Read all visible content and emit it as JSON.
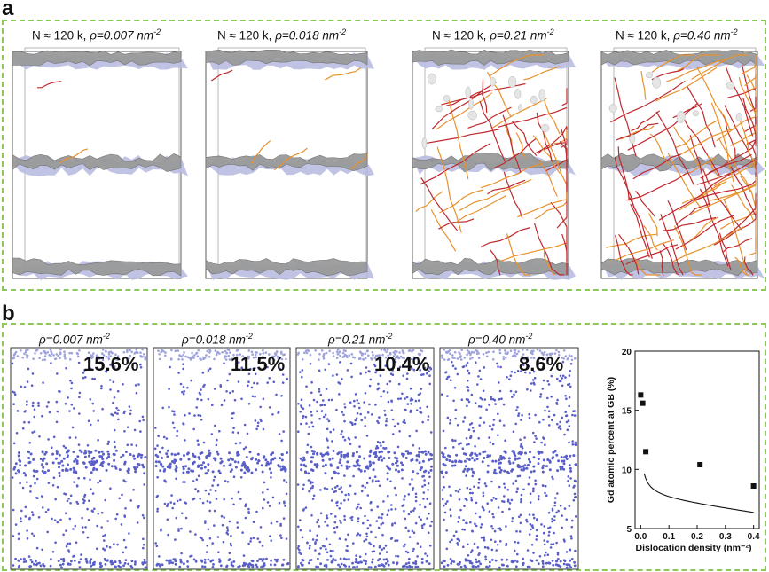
{
  "panel_a": {
    "label": "a",
    "snapshots": [
      {
        "n_label": "N ≈ 120 k, ",
        "rho_label": "ρ=0.007 nm",
        "exp": "-2",
        "density": 0.007
      },
      {
        "n_label": "N ≈ 120 k, ",
        "rho_label": "ρ=0.018 nm",
        "exp": "-2",
        "density": 0.018
      },
      {
        "n_label": "N ≈ 120 k, ",
        "rho_label": "ρ=0.21 nm",
        "exp": "-2",
        "density": 0.21
      },
      {
        "n_label": "N ≈ 120 k, ",
        "rho_label": "ρ=0.40 nm",
        "exp": "-2",
        "density": 0.4
      }
    ]
  },
  "panel_b": {
    "label": "b",
    "snapshots": [
      {
        "rho_label": "ρ=0.007 nm",
        "exp": "-2",
        "gd_percent": "15.6%"
      },
      {
        "rho_label": "ρ=0.018 nm",
        "exp": "-2",
        "gd_percent": "11.5%"
      },
      {
        "rho_label": "ρ=0.21 nm",
        "exp": "-2",
        "gd_percent": "10.4%"
      },
      {
        "rho_label": "ρ=0.40 nm",
        "exp": "-2",
        "gd_percent": "8.6%"
      }
    ]
  },
  "chart_data": {
    "type": "scatter",
    "title": "",
    "xlabel": "Dislocation density (nm⁻²)",
    "ylabel": "Gd atomic percent at GB (%)",
    "xlim": [
      -0.02,
      0.42
    ],
    "ylim": [
      5,
      20
    ],
    "xticks": [
      "0.0",
      "0.1",
      "0.2",
      "0.3",
      "0.4"
    ],
    "yticks": [
      "5",
      "10",
      "15",
      "20"
    ],
    "grid": false,
    "series": [
      {
        "x": [
          0.0,
          0.007,
          0.018,
          0.21,
          0.4
        ],
        "y": [
          16.3,
          15.6,
          11.5,
          10.4,
          8.6
        ],
        "marker": "square",
        "color": "#111111"
      }
    ],
    "fit_curve": true
  },
  "colors": {
    "dash_green": "#8dc95a",
    "gb_gray": "#9a9a9a",
    "gb_blue": "#b9bde0",
    "disl_red": "#c0282d",
    "disl_orange": "#e8912c",
    "atom_blue": "#5a5fc8"
  }
}
